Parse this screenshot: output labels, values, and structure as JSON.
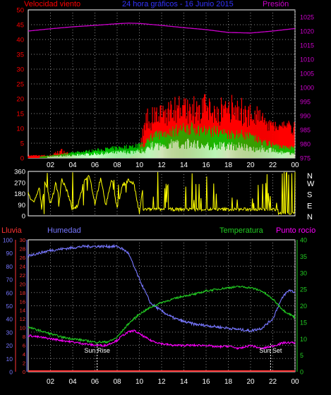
{
  "header": {
    "left_label": "Velocidad viento",
    "center_label": "24 hora gráficos - 16 Junio 2015",
    "right_label": "Presión"
  },
  "lower_header": {
    "rain_label": "Lluvia",
    "humidity_label": "Humedad",
    "temperature_label": "Temperatura",
    "dewpoint_label": "Punto rocío"
  },
  "annotations": {
    "sunrise": "Sun Rise",
    "sunset": "Sun Set"
  },
  "colors": {
    "wind_gust": "#ff0000",
    "wind_avg": "#00cc00",
    "wind_low": "#ccffcc",
    "pressure": "#cc00cc",
    "direction": "#ffff00",
    "rain": "#ff3333",
    "humidity": "#7777ff",
    "temperature": "#22cc22",
    "dewpoint": "#ff00ff",
    "axis_white": "#ffffff",
    "title_blue": "#3333ff"
  },
  "chart_data": [
    {
      "type": "line",
      "name": "wind-pressure",
      "x_tick_labels": [
        "02",
        "04",
        "06",
        "08",
        "10",
        "12",
        "14",
        "16",
        "18",
        "20",
        "22",
        "00"
      ],
      "y_left_ticks": [
        "0",
        "5",
        "10",
        "15",
        "20",
        "25",
        "30",
        "35",
        "40",
        "45",
        "50"
      ],
      "y_left_range": [
        0,
        50
      ],
      "y_right_ticks": [
        "975",
        "980",
        "985",
        "990",
        "995",
        "1000",
        "1005",
        "1010",
        "1015",
        "1020",
        "1025"
      ],
      "y_right_range": [
        975,
        1027.5
      ],
      "pressure": {
        "hours": [
          0,
          2,
          4,
          6,
          8,
          9,
          10,
          12,
          14,
          16,
          18,
          20,
          22,
          24
        ],
        "values": [
          1020.0,
          1020.8,
          1021.5,
          1022.0,
          1022.6,
          1022.8,
          1022.7,
          1022.0,
          1021.2,
          1020.5,
          1019.5,
          1019.3,
          1020.0,
          1020.9
        ]
      },
      "wind_gust_envelope": {
        "hours": [
          0,
          1,
          2,
          3,
          4,
          5,
          6,
          7,
          8,
          9,
          10,
          10.5,
          11,
          12,
          13,
          14,
          15,
          16,
          17,
          18,
          19,
          20,
          21,
          22,
          23,
          24
        ],
        "values": [
          1,
          1,
          1,
          3,
          1,
          0,
          0,
          0,
          0,
          0,
          2,
          15,
          16,
          18,
          19,
          20,
          19,
          20,
          19,
          20,
          19,
          18,
          15,
          10,
          9,
          15
        ]
      },
      "wind_avg_envelope": {
        "hours": [
          0,
          10.5,
          11,
          12,
          13,
          14,
          15,
          16,
          17,
          18,
          19,
          20,
          21,
          22,
          23,
          24
        ],
        "values": [
          0,
          5,
          8,
          9,
          10,
          11,
          11,
          10,
          10,
          9,
          9,
          8,
          6,
          5,
          4,
          4
        ]
      },
      "wind_low_envelope": {
        "hours": [
          0,
          10.5,
          11,
          12,
          13,
          14,
          15,
          16,
          17,
          18,
          19,
          20,
          21,
          22,
          23,
          24
        ],
        "values": [
          0,
          3,
          5,
          5,
          6,
          6,
          6,
          5,
          5,
          5,
          5,
          4,
          4,
          3,
          2,
          2
        ]
      }
    },
    {
      "type": "line",
      "name": "wind-direction",
      "y_left_ticks": [
        "0",
        "90",
        "180",
        "270",
        "360"
      ],
      "y_left_range": [
        0,
        360
      ],
      "y_right_ticks": [
        "N",
        "W",
        "S",
        "E",
        "N"
      ],
      "hours": [
        0,
        0.5,
        1,
        1.2,
        1.5,
        2,
        2.5,
        2.8,
        3,
        3.5,
        4,
        4.5,
        5,
        5.5,
        6,
        6.5,
        7,
        7.5,
        8,
        8.5,
        9,
        9.5,
        10,
        10.5,
        11,
        12,
        13,
        14,
        15,
        16,
        17,
        18,
        19,
        20,
        21,
        22,
        22.5,
        23,
        23.5,
        24
      ],
      "values": [
        180,
        100,
        230,
        60,
        290,
        100,
        260,
        120,
        300,
        200,
        40,
        90,
        280,
        330,
        100,
        300,
        90,
        300,
        60,
        250,
        290,
        260,
        20,
        340,
        30,
        20,
        60,
        10,
        50,
        340,
        20,
        60,
        30,
        80,
        20,
        20,
        10,
        350,
        340,
        20
      ]
    },
    {
      "type": "line",
      "name": "humidity-temperature",
      "x_tick_labels": [
        "02",
        "04",
        "06",
        "08",
        "10",
        "12",
        "14",
        "16",
        "18",
        "20",
        "22",
        "00"
      ],
      "rain_axis": {
        "ticks": [
          "0",
          "10",
          "20",
          "30",
          "40",
          "50",
          "60",
          "70",
          "80",
          "90",
          "100"
        ],
        "range": [
          0,
          100
        ]
      },
      "humidity_axis": {
        "ticks": [
          "0",
          "2",
          "4",
          "6",
          "8",
          "10",
          "12",
          "14",
          "16",
          "18",
          "20",
          "22",
          "24",
          "26",
          "28",
          "30"
        ],
        "range": [
          0,
          30
        ]
      },
      "temperature_axis": {
        "ticks": [
          "0",
          "5",
          "10",
          "15",
          "20",
          "25",
          "30",
          "35",
          "40"
        ],
        "range": [
          0,
          40
        ]
      },
      "series": [
        {
          "name": "Humedad",
          "hours": [
            0,
            1,
            2,
            3,
            4,
            5,
            6,
            7,
            8,
            8.5,
            9,
            10,
            11,
            12,
            13,
            14,
            15,
            16,
            17,
            18,
            19,
            20,
            21,
            22,
            22.5,
            23,
            23.5,
            24
          ],
          "values": [
            88,
            90,
            92,
            93,
            94,
            95,
            95,
            95,
            95,
            93,
            90,
            70,
            52,
            46,
            41,
            38,
            36,
            35,
            34,
            33,
            32,
            31,
            33,
            40,
            50,
            58,
            62,
            60
          ]
        },
        {
          "name": "Temperatura",
          "hours": [
            0,
            1,
            2,
            3,
            4,
            5,
            6,
            7,
            7.5,
            8,
            8.5,
            9,
            10,
            11,
            12,
            13,
            14,
            15,
            16,
            17,
            18,
            19,
            20,
            21,
            22,
            23,
            23.5,
            24
          ],
          "values": [
            13.5,
            12.5,
            11.5,
            10.5,
            10.0,
            9.5,
            9.0,
            9.0,
            9.5,
            10.5,
            12.5,
            14.5,
            17.5,
            19.5,
            21.0,
            22.0,
            23.0,
            23.5,
            24.5,
            25.0,
            25.5,
            25.8,
            25.5,
            24.5,
            22.0,
            18.5,
            17.5,
            16.5
          ]
        },
        {
          "name": "Punto rocío",
          "hours": [
            0,
            1,
            2,
            3,
            4,
            5,
            6,
            7,
            8,
            8.5,
            9,
            9.5,
            10,
            11,
            12,
            13,
            14,
            15,
            16,
            17,
            18,
            19,
            20,
            21,
            22,
            23,
            24
          ],
          "values": [
            11.0,
            10.5,
            10.0,
            9.5,
            9.0,
            8.5,
            8.0,
            8.0,
            9.5,
            11.0,
            12.0,
            12.5,
            11.5,
            9.5,
            8.5,
            8.0,
            8.0,
            8.0,
            8.0,
            7.5,
            7.8,
            7.0,
            8.0,
            7.0,
            7.8,
            8.8,
            8.8
          ]
        },
        {
          "name": "Lluvia",
          "hours": [
            0,
            24
          ],
          "values": [
            0,
            0
          ]
        }
      ],
      "sunrise_hour": 6.2,
      "sunset_hour": 21.8
    }
  ]
}
